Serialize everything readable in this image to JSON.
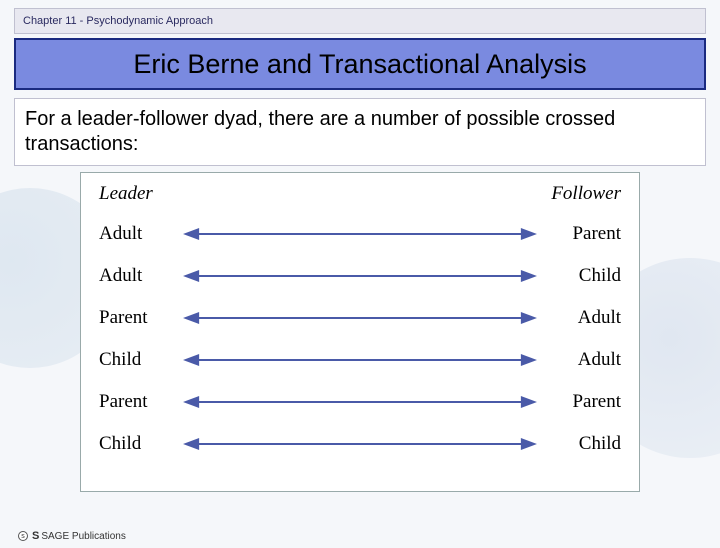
{
  "chapter_label": "Chapter 11 - Psychodynamic Approach",
  "title": "Eric Berne and Transactional Analysis",
  "intro_text": "For a leader-follower dyad, there are a number of possible crossed transactions:",
  "diagram": {
    "left_header": "Leader",
    "right_header": "Follower",
    "arrow_color": "#4a5aa8",
    "arrow_stroke_width": 2,
    "font_family_labels": "Times New Roman",
    "label_fontsize": 19,
    "header_fontstyle": "italic",
    "rows": [
      {
        "left": "Adult",
        "right": "Parent",
        "double_headed": true
      },
      {
        "left": "Adult",
        "right": "Child",
        "double_headed": true
      },
      {
        "left": "Parent",
        "right": "Adult",
        "double_headed": true
      },
      {
        "left": "Child",
        "right": "Adult",
        "double_headed": true
      },
      {
        "left": "Parent",
        "right": "Parent",
        "double_headed": true
      },
      {
        "left": "Child",
        "right": "Child",
        "double_headed": true
      }
    ]
  },
  "colors": {
    "title_bar_bg": "#7a8ae0",
    "title_bar_border": "#1a2a80",
    "chapter_bar_bg": "#e8e8f0",
    "page_bg": "#f5f7fa",
    "box_bg": "#ffffff",
    "box_border": "#9aa"
  },
  "footer": {
    "publisher_prefix": "S",
    "publisher": "SAGE Publications",
    "circle_glyph": "s"
  }
}
